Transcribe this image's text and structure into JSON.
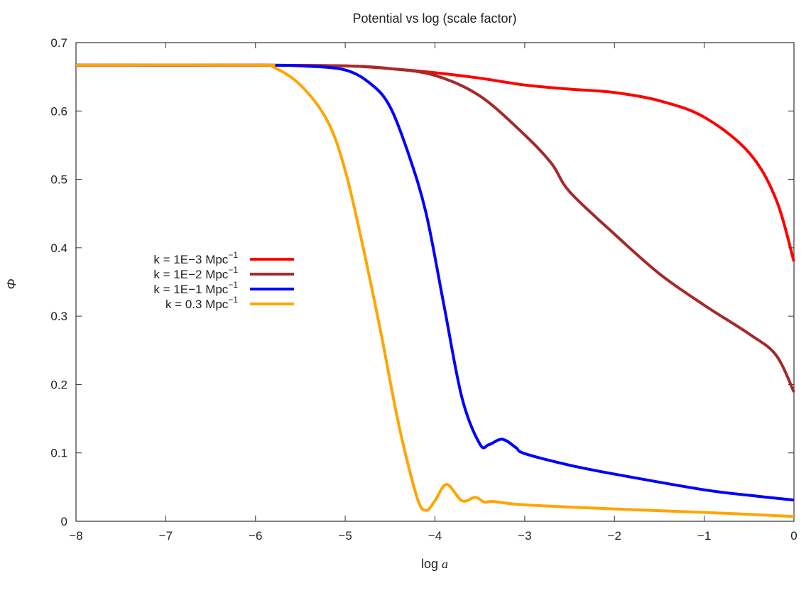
{
  "chart_data": {
    "type": "line",
    "title": "Potential vs log (scale factor)",
    "xlabel": "log a",
    "ylabel": "Φ",
    "xlim": [
      -8,
      0
    ],
    "ylim": [
      0,
      0.7
    ],
    "xticks": [
      -8,
      -7,
      -6,
      -5,
      -4,
      -3,
      -2,
      -1,
      0
    ],
    "xtick_labels": [
      "−8",
      "−7",
      "−6",
      "−5",
      "−4",
      "−3",
      "−2",
      "−1",
      "0"
    ],
    "yticks": [
      0,
      0.1,
      0.2,
      0.3,
      0.4,
      0.5,
      0.6,
      0.7
    ],
    "ytick_labels": [
      "0",
      "0.1",
      "0.2",
      "0.3",
      "0.4",
      "0.5",
      "0.6",
      "0.7"
    ],
    "grid": false,
    "legend_placement": "center-left",
    "series": [
      {
        "name": "k = 1E−3 Mpc",
        "name_sup": "−1",
        "color": "#ff0000",
        "x": [
          -8,
          -6,
          -5,
          -4.5,
          -4,
          -3.5,
          -3,
          -2.5,
          -2,
          -1.5,
          -1,
          -0.5,
          -0.2,
          0
        ],
        "y": [
          0.667,
          0.667,
          0.666,
          0.662,
          0.656,
          0.648,
          0.638,
          0.632,
          0.627,
          0.615,
          0.591,
          0.539,
          0.471,
          0.38
        ]
      },
      {
        "name": "k = 1E−2 Mpc",
        "name_sup": "−1",
        "color": "#a52a2a",
        "x": [
          -8,
          -6,
          -5,
          -4.5,
          -4,
          -3.5,
          -3,
          -2.7,
          -2.5,
          -2,
          -1.5,
          -1,
          -0.5,
          -0.2,
          0
        ],
        "y": [
          0.667,
          0.667,
          0.666,
          0.662,
          0.652,
          0.622,
          0.565,
          0.523,
          0.482,
          0.42,
          0.362,
          0.316,
          0.274,
          0.243,
          0.189
        ]
      },
      {
        "name": "k = 1E−1 Mpc",
        "name_sup": "−1",
        "color": "#0000ff",
        "x": [
          -8,
          -6,
          -5.5,
          -5,
          -4.7,
          -4.5,
          -4.3,
          -4.1,
          -3.9,
          -3.7,
          -3.5,
          -3.4,
          -3.25,
          -3.1,
          -3,
          -2.5,
          -2,
          -1,
          -0.5,
          0
        ],
        "y": [
          0.667,
          0.667,
          0.666,
          0.66,
          0.638,
          0.606,
          0.539,
          0.451,
          0.316,
          0.181,
          0.113,
          0.112,
          0.12,
          0.108,
          0.099,
          0.082,
          0.069,
          0.046,
          0.038,
          0.031
        ]
      },
      {
        "name": "k = 0.3 Mpc",
        "name_sup": "−1",
        "color": "#ffa500",
        "x": [
          -8,
          -6,
          -5.8,
          -5.5,
          -5.2,
          -5,
          -4.8,
          -4.6,
          -4.4,
          -4.2,
          -4.1,
          -4.0,
          -3.87,
          -3.7,
          -3.55,
          -3.45,
          -3.35,
          -3,
          -2,
          -1,
          0
        ],
        "y": [
          0.667,
          0.667,
          0.664,
          0.638,
          0.586,
          0.513,
          0.4,
          0.274,
          0.139,
          0.035,
          0.016,
          0.03,
          0.054,
          0.03,
          0.035,
          0.028,
          0.029,
          0.024,
          0.018,
          0.013,
          0.007
        ]
      }
    ]
  }
}
